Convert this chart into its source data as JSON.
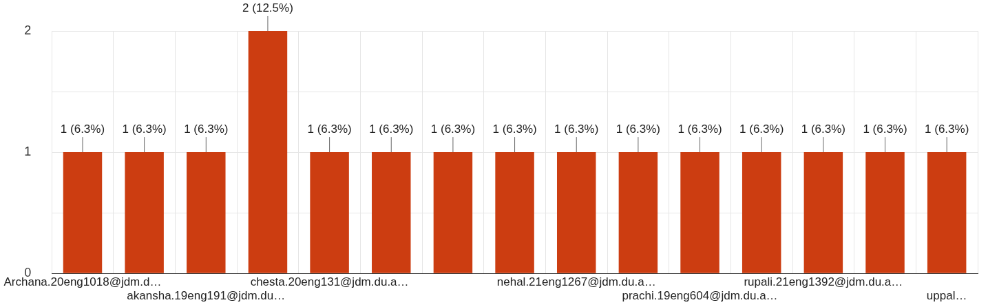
{
  "chart_data": {
    "type": "bar",
    "categories": [
      "Archana.20eng1018@jdm.d…",
      null,
      "akansha.19eng191@jdm.du…",
      null,
      "chesta.20eng131@jdm.du.a…",
      null,
      null,
      null,
      "nehal.21eng1267@jdm.du.a…",
      null,
      "prachi.19eng604@jdm.du.a…",
      null,
      "rupali.21eng1392@jdm.du.a…",
      null,
      "uppal…"
    ],
    "values": [
      1,
      1,
      1,
      2,
      1,
      1,
      1,
      1,
      1,
      1,
      1,
      1,
      1,
      1,
      1
    ],
    "color": "#cc3d11",
    "value_labels": [
      "1 (6.3%)",
      "1 (6.3%)",
      "1 (6.3%)",
      "2 (12.5%)",
      "1 (6.3%)",
      "1 (6.3%)",
      "1 (6.3%)",
      "1 (6.3%)",
      "1 (6.3%)",
      "1 (6.3%)",
      "1 (6.3%)",
      "1 (6.3%)",
      "1 (6.3%)",
      "1 (6.3%)",
      "1 (6.3%)"
    ],
    "ylim": [
      0,
      2
    ],
    "yticks": [
      0,
      {
        "value": 0.5,
        "label": null
      },
      1,
      {
        "value": 1.5,
        "label": null
      },
      2
    ],
    "grid": true,
    "legend": false
  }
}
